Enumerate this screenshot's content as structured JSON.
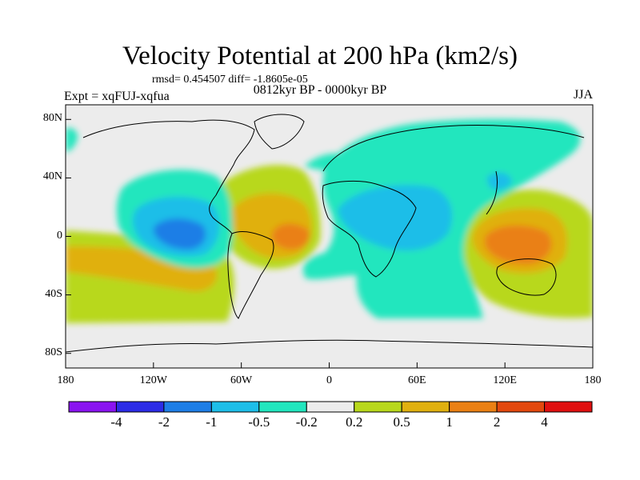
{
  "title": "Velocity Potential at 200 hPa (km2/s)",
  "stats": "rmsd= 0.454507 diff= -1.8605e-05",
  "period": "0812kyr BP - 0000kyr BP",
  "experiment": "Expt = xqFUJ-xqfua",
  "season": "JJA",
  "map": {
    "type": "filled contour map",
    "projection": "cylindrical equidistant",
    "lon_range": [
      -180,
      180
    ],
    "lat_range": [
      -90,
      90
    ],
    "lat_ticks": [
      "80N",
      "40N",
      "0",
      "40S",
      "80S"
    ],
    "lon_ticks": [
      "180",
      "120W",
      "60W",
      "0",
      "60E",
      "120E",
      "180"
    ]
  },
  "colorbar": {
    "labels": [
      "-4",
      "-2",
      "-1",
      "-0.5",
      "-0.2",
      "0.2",
      "0.5",
      "1",
      "2",
      "4"
    ],
    "colors": [
      "#8a14f0",
      "#2c2ce6",
      "#1e7ee6",
      "#1ebee8",
      "#22e6be",
      "#ececec",
      "#b8d81c",
      "#e0b010",
      "#ea8014",
      "#e2480e",
      "#e01010"
    ]
  }
}
